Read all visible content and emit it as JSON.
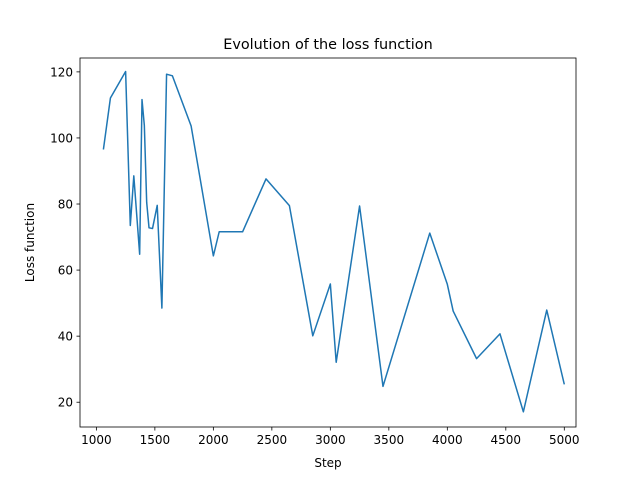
{
  "chart_data": {
    "type": "line",
    "title": "Evolution of the loss function",
    "xlabel": "Step",
    "ylabel": "Loss function",
    "xlim": [
      860,
      5100
    ],
    "ylim": [
      12.5,
      124.2
    ],
    "xticks": [
      1000,
      1500,
      2000,
      2500,
      3000,
      3500,
      4000,
      4500,
      5000
    ],
    "xtick_labels": [
      "1000",
      "1500",
      "2000",
      "2500",
      "3000",
      "3500",
      "4000",
      "4500",
      "5000"
    ],
    "yticks": [
      20,
      40,
      60,
      80,
      100,
      120
    ],
    "ytick_labels": [
      "20",
      "40",
      "60",
      "80",
      "100",
      "120"
    ],
    "grid": false,
    "series": [
      {
        "color": "#1f77b4",
        "x": [
          1060,
          1120,
          1250,
          1290,
          1320,
          1370,
          1390,
          1410,
          1430,
          1450,
          1480,
          1520,
          1560,
          1580,
          1600,
          1650,
          1810,
          2000,
          2050,
          2250,
          2450,
          2650,
          2850,
          3000,
          3050,
          3250,
          3450,
          3850,
          4000,
          4050,
          4250,
          4450,
          4650,
          4850,
          5000
        ],
        "y": [
          96.5,
          112.1,
          120.1,
          73.5,
          88.5,
          64.8,
          111.6,
          103.8,
          80.5,
          72.8,
          72.6,
          79.6,
          48.5,
          83.9,
          119.3,
          118.8,
          103.6,
          64.3,
          71.6,
          71.6,
          87.6,
          79.5,
          40.1,
          55.8,
          32.1,
          79.4,
          24.8,
          71.2,
          55.7,
          47.6,
          33.2,
          40.7,
          17.1,
          47.9,
          25.4
        ]
      }
    ]
  }
}
